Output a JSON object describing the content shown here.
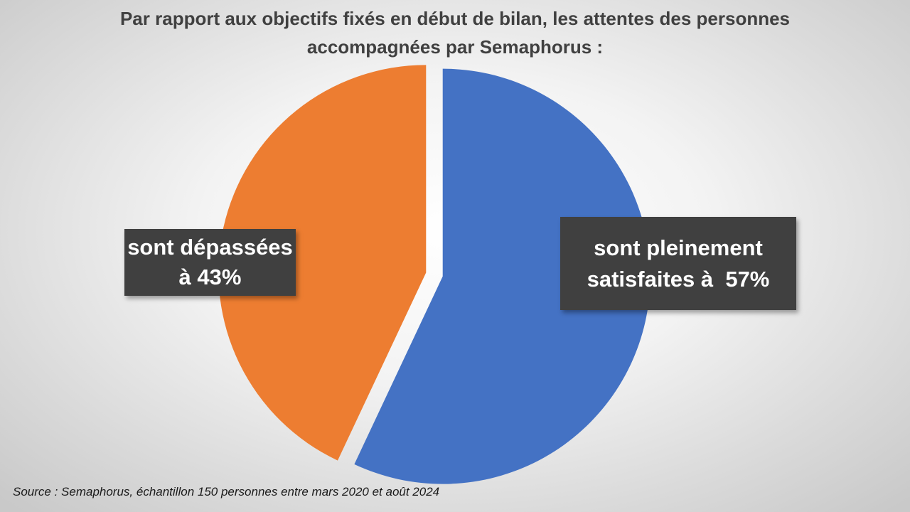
{
  "chart_data": {
    "type": "pie",
    "title_lines": [
      "Par rapport aux objectifs fixés en début de bilan, les attentes des personnes",
      "accompagnées par Semaphorus  :"
    ],
    "slices": [
      {
        "label_lines": [
          "sont pleinement",
          "satisfaites à  57%"
        ],
        "value": 57,
        "color": "#4472C4"
      },
      {
        "label_lines": [
          "sont dépassées",
          "à 43%"
        ],
        "value": 43,
        "color": "#ED7D31"
      }
    ],
    "exploded": true,
    "legend": "none",
    "source": "Source : Semaphorus, échantillon 150 personnes entre mars 2020 et août 2024"
  }
}
